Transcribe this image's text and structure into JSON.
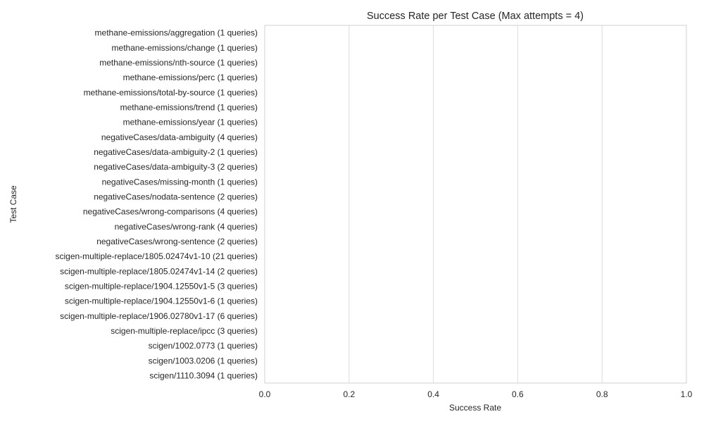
{
  "chart_data": {
    "type": "bar",
    "orientation": "horizontal",
    "title": "Success Rate per Test Case (Max attempts = 4)",
    "xlabel": "Success Rate",
    "ylabel": "Test Case",
    "xlim": [
      0.0,
      1.0
    ],
    "xticks": [
      "0.0",
      "0.2",
      "0.4",
      "0.6",
      "0.8",
      "1.0"
    ],
    "grid": true,
    "categories": [
      "methane-emissions/aggregation (1 queries)",
      "methane-emissions/change (1 queries)",
      "methane-emissions/nth-source (1 queries)",
      "methane-emissions/perc (1 queries)",
      "methane-emissions/total-by-source (1 queries)",
      "methane-emissions/trend (1 queries)",
      "methane-emissions/year (1 queries)",
      "negativeCases/data-ambiguity (4 queries)",
      "negativeCases/data-ambiguity-2 (1 queries)",
      "negativeCases/data-ambiguity-3 (2 queries)",
      "negativeCases/missing-month (1 queries)",
      "negativeCases/nodata-sentence (2 queries)",
      "negativeCases/wrong-comparisons (4 queries)",
      "negativeCases/wrong-rank (4 queries)",
      "negativeCases/wrong-sentence (2 queries)",
      "scigen-multiple-replace/1805.02474v1-10 (21 queries)",
      "scigen-multiple-replace/1805.02474v1-14 (2 queries)",
      "scigen-multiple-replace/1904.12550v1-5 (3 queries)",
      "scigen-multiple-replace/1904.12550v1-6 (1 queries)",
      "scigen-multiple-replace/1906.02780v1-17 (6 queries)",
      "scigen-multiple-replace/ipcc (3 queries)",
      "scigen/1002.0773 (1 queries)",
      "scigen/1003.0206 (1 queries)",
      "scigen/1110.3094 (1 queries)"
    ],
    "values": [
      0,
      0,
      0,
      0,
      0,
      0,
      0,
      0,
      0,
      0,
      0,
      0,
      0,
      0,
      0,
      0,
      0,
      0,
      0,
      0,
      0,
      0,
      0,
      0
    ],
    "colors": {
      "bar": "#4c72b0",
      "grid": "#dcdcdc",
      "spine": "#d0d0d0",
      "text": "#262626"
    }
  }
}
